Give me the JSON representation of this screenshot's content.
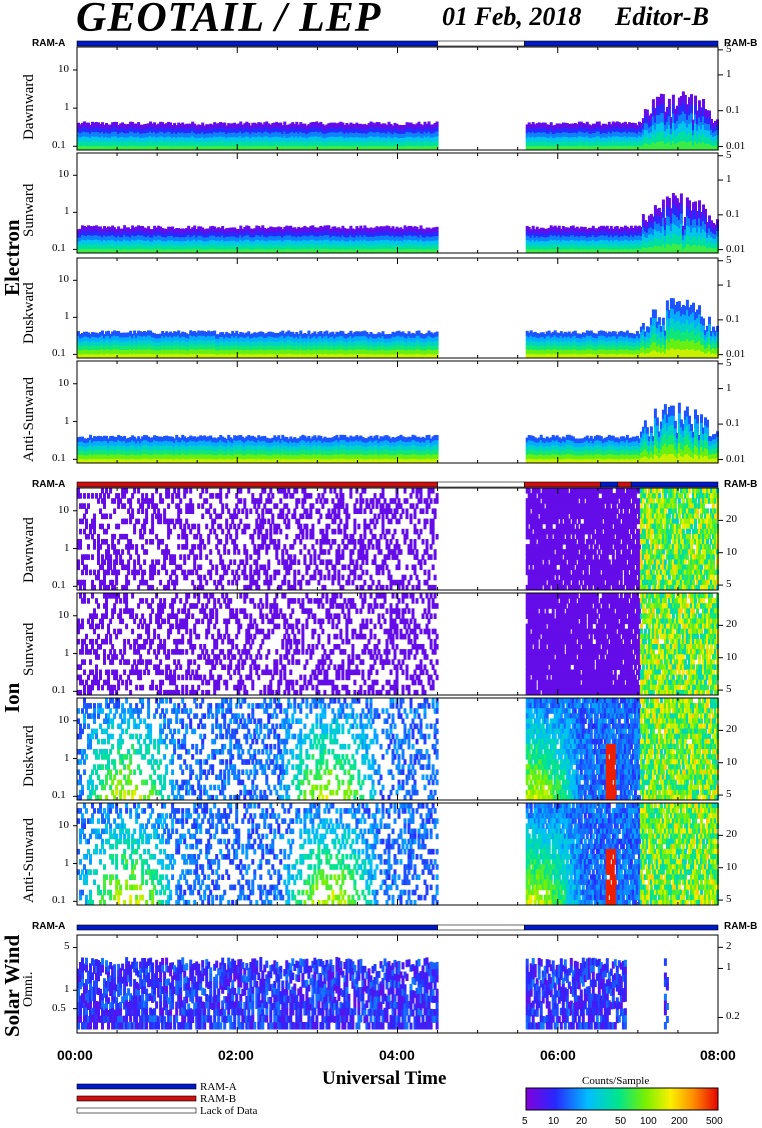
{
  "header": {
    "instrument": "GEOTAIL / LEP",
    "date": "01 Feb, 2018",
    "editor": "Editor-B"
  },
  "groups": {
    "electron": "Electron",
    "ion": "Ion",
    "solar_wind": "Solar Wind"
  },
  "panel_labels": {
    "dawnward": "Dawnward",
    "sunward": "Sunward",
    "duskward": "Duskward",
    "anti_sunward": "Anti-Sunward",
    "omni": "Omni."
  },
  "ram": {
    "left": "RAM-A",
    "right": "RAM-B"
  },
  "axes": {
    "electron_left_ticks": [
      "10",
      "1",
      "0.1"
    ],
    "electron_right_ticks": [
      "5",
      "1",
      "0.1",
      "0.01"
    ],
    "ion_left_ticks": [
      "10",
      "1",
      "0.1"
    ],
    "ion_right_ticks": [
      "20",
      "10",
      "5"
    ],
    "sw_left_ticks": [
      "5",
      "1",
      "0.5"
    ],
    "sw_right_ticks": [
      "2",
      "1",
      "0.2"
    ],
    "x_ticks": [
      "00:00",
      "02:00",
      "04:00",
      "06:00",
      "08:00"
    ],
    "x_label": "Universal Time"
  },
  "legend": {
    "items": [
      {
        "label": "RAM-A",
        "color": "#0019c8"
      },
      {
        "label": "RAM-B",
        "color": "#d01010"
      },
      {
        "label": "Lack of Data",
        "color": "#ffffff"
      }
    ],
    "colorbar_title": "Counts/Sample",
    "colorbar_ticks": [
      "5",
      "10",
      "20",
      "50",
      "100",
      "200",
      "500"
    ]
  },
  "chart_data": {
    "type": "heatmap",
    "title": "GEOTAIL / LEP",
    "xlabel": "Universal Time",
    "xlim": [
      "00:00",
      "08:00"
    ],
    "data_gap": [
      "04:30",
      "05:35"
    ],
    "colorbar": {
      "label": "Counts/Sample",
      "range": [
        5,
        500
      ],
      "scale": "log"
    },
    "ram_segments": {
      "electron": [
        {
          "from": "00:00",
          "to": "04:30",
          "mode": "RAM-A"
        },
        {
          "from": "04:30",
          "to": "05:35",
          "mode": "Lack of Data"
        },
        {
          "from": "05:35",
          "to": "08:00",
          "mode": "RAM-A"
        }
      ],
      "ion": [
        {
          "from": "00:00",
          "to": "04:30",
          "mode": "RAM-B"
        },
        {
          "from": "04:30",
          "to": "05:35",
          "mode": "Lack of Data"
        },
        {
          "from": "05:35",
          "to": "06:32",
          "mode": "RAM-B"
        },
        {
          "from": "06:32",
          "to": "06:45",
          "mode": "RAM-A"
        },
        {
          "from": "06:45",
          "to": "06:55",
          "mode": "RAM-B"
        },
        {
          "from": "06:55",
          "to": "08:00",
          "mode": "RAM-A"
        }
      ],
      "solar_wind": [
        {
          "from": "00:00",
          "to": "04:30",
          "mode": "RAM-A"
        },
        {
          "from": "04:30",
          "to": "05:35",
          "mode": "Lack of Data"
        },
        {
          "from": "05:35",
          "to": "08:00",
          "mode": "RAM-A"
        }
      ]
    },
    "panels": [
      {
        "group": "Electron",
        "direction": "Dawnward",
        "ylim": [
          0.08,
          40
        ],
        "yscale": "log"
      },
      {
        "group": "Electron",
        "direction": "Sunward",
        "ylim": [
          0.08,
          40
        ],
        "yscale": "log"
      },
      {
        "group": "Electron",
        "direction": "Duskward",
        "ylim": [
          0.08,
          40
        ],
        "yscale": "log"
      },
      {
        "group": "Electron",
        "direction": "Anti-Sunward",
        "ylim": [
          0.08,
          40
        ],
        "yscale": "log"
      },
      {
        "group": "Ion",
        "direction": "Dawnward",
        "ylim": [
          0.08,
          40
        ],
        "yscale": "log"
      },
      {
        "group": "Ion",
        "direction": "Sunward",
        "ylim": [
          0.08,
          40
        ],
        "yscale": "log"
      },
      {
        "group": "Ion",
        "direction": "Duskward",
        "ylim": [
          0.08,
          40
        ],
        "yscale": "log"
      },
      {
        "group": "Ion",
        "direction": "Anti-Sunward",
        "ylim": [
          0.08,
          40
        ],
        "yscale": "log"
      },
      {
        "group": "Solar Wind",
        "direction": "Omni.",
        "ylim": [
          0.2,
          8
        ],
        "yscale": "log"
      }
    ]
  }
}
